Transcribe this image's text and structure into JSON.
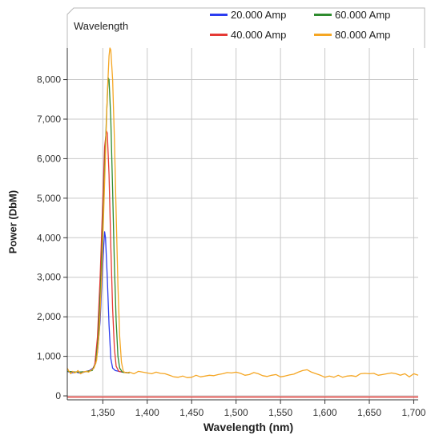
{
  "panel": {
    "tab_label": "Wavelength"
  },
  "chart_data": {
    "type": "line",
    "title": "",
    "xlabel": "Wavelength (nm)",
    "ylabel": "Power (DbM)",
    "xlim": [
      1310,
      1705
    ],
    "ylim": [
      -100,
      8800
    ],
    "x_ticks": [
      1350,
      1400,
      1450,
      1500,
      1550,
      1600,
      1650,
      1700
    ],
    "x_tick_labels": [
      "1,350",
      "1,400",
      "1,450",
      "1,500",
      "1,550",
      "1,600",
      "1,650",
      "1,700"
    ],
    "y_ticks": [
      0,
      1000,
      2000,
      3000,
      4000,
      5000,
      6000,
      7000,
      8000
    ],
    "y_tick_labels": [
      "0",
      "1,000",
      "2,000",
      "3,000",
      "4,000",
      "5,000",
      "6,000",
      "7,000",
      "8,000"
    ],
    "grid": true,
    "legend_position": "top-right",
    "baseline": {
      "value": -30,
      "color": "#e53935"
    },
    "series": [
      {
        "name": "20.000 Amp",
        "color": "#2b3cf0",
        "points": [
          [
            1310,
            620
          ],
          [
            1315,
            580
          ],
          [
            1320,
            600
          ],
          [
            1325,
            570
          ],
          [
            1330,
            610
          ],
          [
            1335,
            640
          ],
          [
            1340,
            720
          ],
          [
            1344,
            1100
          ],
          [
            1347,
            1900
          ],
          [
            1349,
            2900
          ],
          [
            1351,
            3800
          ],
          [
            1352,
            4150
          ],
          [
            1353,
            4000
          ],
          [
            1355,
            3000
          ],
          [
            1357,
            1800
          ],
          [
            1359,
            950
          ],
          [
            1361,
            700
          ],
          [
            1364,
            640
          ],
          [
            1368,
            620
          ],
          [
            1372,
            600
          ],
          [
            1376,
            590
          ],
          [
            1380,
            580
          ]
        ]
      },
      {
        "name": "40.000 Amp",
        "color": "#e53935",
        "points": [
          [
            1310,
            620
          ],
          [
            1320,
            600
          ],
          [
            1330,
            610
          ],
          [
            1338,
            650
          ],
          [
            1341,
            800
          ],
          [
            1344,
            1500
          ],
          [
            1347,
            3000
          ],
          [
            1350,
            5000
          ],
          [
            1352,
            6300
          ],
          [
            1354,
            6700
          ],
          [
            1355,
            6650
          ],
          [
            1357,
            5600
          ],
          [
            1359,
            3800
          ],
          [
            1361,
            2200
          ],
          [
            1363,
            1200
          ],
          [
            1365,
            750
          ],
          [
            1368,
            620
          ],
          [
            1372,
            600
          ],
          [
            1376,
            590
          ],
          [
            1380,
            580
          ]
        ]
      },
      {
        "name": "60.000 Amp",
        "color": "#2e8b2e",
        "points": [
          [
            1310,
            620
          ],
          [
            1320,
            600
          ],
          [
            1330,
            610
          ],
          [
            1338,
            640
          ],
          [
            1342,
            820
          ],
          [
            1345,
            1500
          ],
          [
            1348,
            3000
          ],
          [
            1351,
            5000
          ],
          [
            1354,
            7000
          ],
          [
            1356,
            8050
          ],
          [
            1357,
            8000
          ],
          [
            1359,
            7000
          ],
          [
            1361,
            5200
          ],
          [
            1363,
            3300
          ],
          [
            1365,
            1900
          ],
          [
            1367,
            1000
          ],
          [
            1369,
            700
          ],
          [
            1372,
            600
          ],
          [
            1376,
            590
          ],
          [
            1380,
            580
          ]
        ]
      },
      {
        "name": "80.000 Amp",
        "color": "#f5a623",
        "points": [
          [
            1310,
            700
          ],
          [
            1312,
            620
          ],
          [
            1314,
            560
          ],
          [
            1316,
            620
          ],
          [
            1318,
            580
          ],
          [
            1320,
            600
          ],
          [
            1322,
            640
          ],
          [
            1325,
            560
          ],
          [
            1328,
            600
          ],
          [
            1331,
            620
          ],
          [
            1334,
            600
          ],
          [
            1337,
            650
          ],
          [
            1340,
            700
          ],
          [
            1343,
            900
          ],
          [
            1346,
            1600
          ],
          [
            1349,
            3200
          ],
          [
            1352,
            5400
          ],
          [
            1355,
            7600
          ],
          [
            1357,
            8600
          ],
          [
            1358,
            8800
          ],
          [
            1359,
            8750
          ],
          [
            1361,
            8000
          ],
          [
            1363,
            6500
          ],
          [
            1365,
            4600
          ],
          [
            1367,
            2800
          ],
          [
            1369,
            1500
          ],
          [
            1371,
            850
          ],
          [
            1373,
            620
          ],
          [
            1376,
            580
          ],
          [
            1380,
            600
          ],
          [
            1385,
            560
          ],
          [
            1390,
            620
          ],
          [
            1395,
            600
          ],
          [
            1400,
            580
          ],
          [
            1405,
            560
          ],
          [
            1410,
            600
          ],
          [
            1415,
            570
          ],
          [
            1420,
            560
          ],
          [
            1425,
            520
          ],
          [
            1430,
            480
          ],
          [
            1435,
            470
          ],
          [
            1440,
            500
          ],
          [
            1445,
            460
          ],
          [
            1450,
            470
          ],
          [
            1455,
            520
          ],
          [
            1460,
            480
          ],
          [
            1465,
            500
          ],
          [
            1470,
            520
          ],
          [
            1475,
            510
          ],
          [
            1480,
            540
          ],
          [
            1485,
            560
          ],
          [
            1490,
            590
          ],
          [
            1495,
            580
          ],
          [
            1500,
            600
          ],
          [
            1505,
            570
          ],
          [
            1510,
            520
          ],
          [
            1515,
            540
          ],
          [
            1520,
            590
          ],
          [
            1525,
            560
          ],
          [
            1530,
            510
          ],
          [
            1535,
            490
          ],
          [
            1540,
            520
          ],
          [
            1545,
            540
          ],
          [
            1550,
            480
          ],
          [
            1555,
            500
          ],
          [
            1560,
            530
          ],
          [
            1565,
            550
          ],
          [
            1570,
            600
          ],
          [
            1575,
            640
          ],
          [
            1580,
            660
          ],
          [
            1585,
            600
          ],
          [
            1590,
            560
          ],
          [
            1595,
            520
          ],
          [
            1600,
            470
          ],
          [
            1605,
            500
          ],
          [
            1610,
            470
          ],
          [
            1615,
            520
          ],
          [
            1620,
            470
          ],
          [
            1625,
            500
          ],
          [
            1630,
            510
          ],
          [
            1635,
            490
          ],
          [
            1640,
            560
          ],
          [
            1645,
            570
          ],
          [
            1650,
            560
          ],
          [
            1655,
            570
          ],
          [
            1660,
            520
          ],
          [
            1665,
            540
          ],
          [
            1670,
            560
          ],
          [
            1675,
            580
          ],
          [
            1680,
            560
          ],
          [
            1685,
            520
          ],
          [
            1690,
            560
          ],
          [
            1695,
            480
          ],
          [
            1700,
            560
          ],
          [
            1705,
            520
          ]
        ]
      }
    ]
  }
}
